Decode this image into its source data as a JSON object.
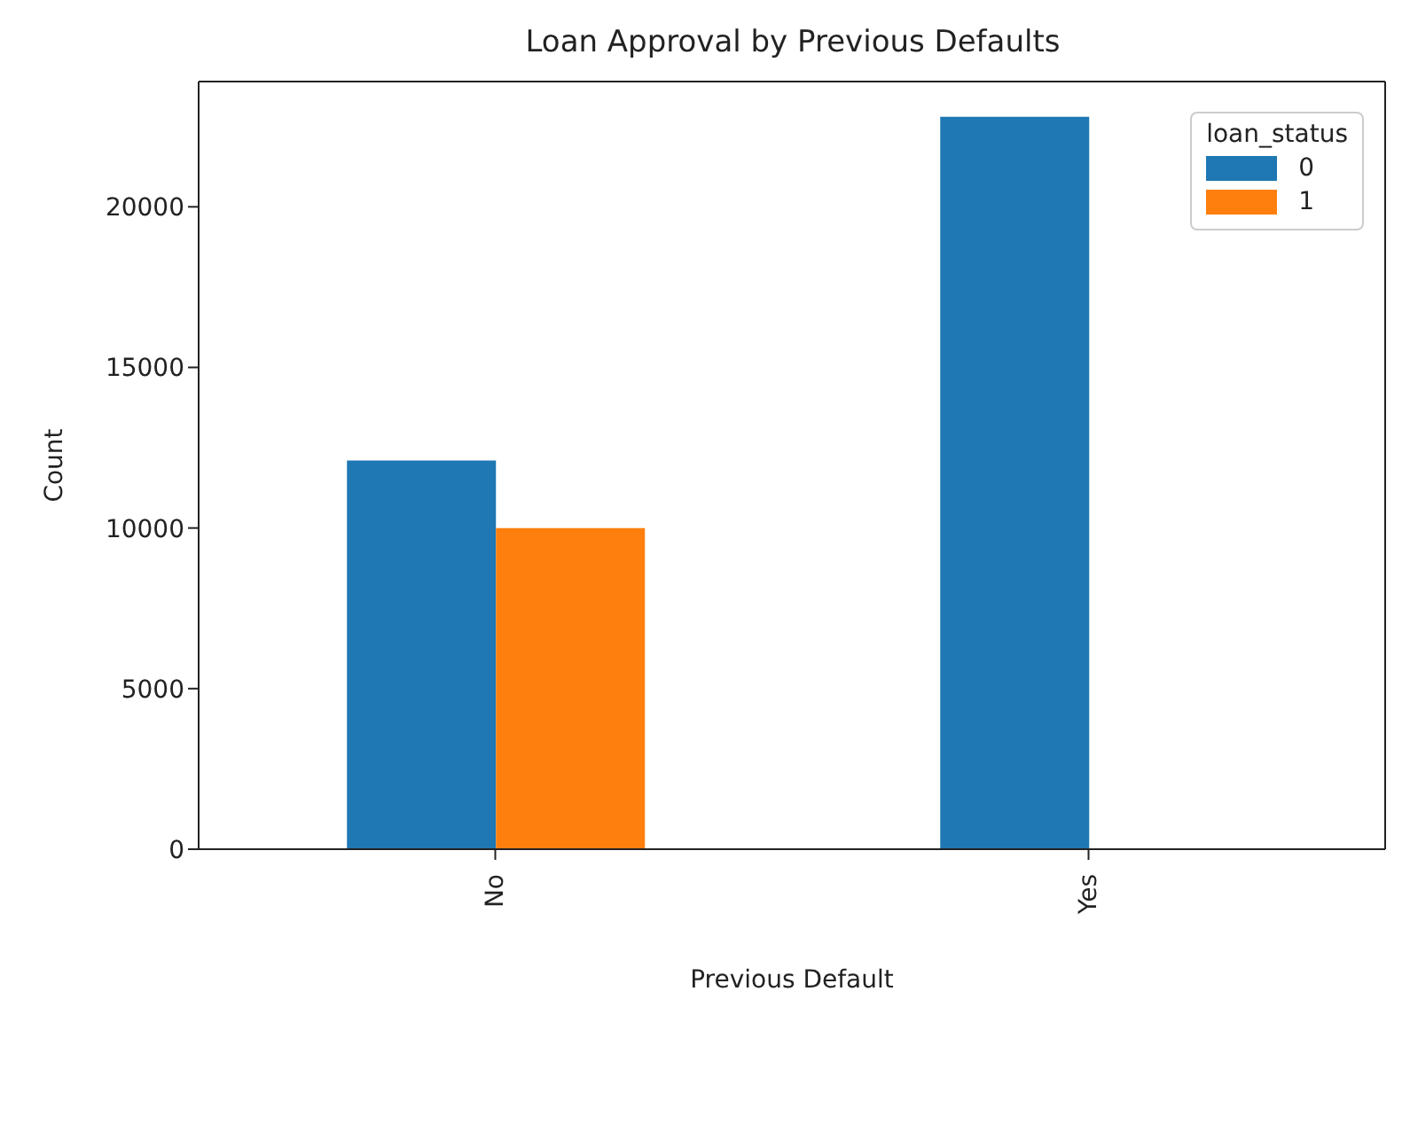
{
  "chart_data": {
    "type": "bar",
    "title": "Loan Approval by Previous Defaults",
    "xlabel": "Previous Default",
    "ylabel": "Count",
    "legend_title": "loan_status",
    "categories": [
      "No",
      "Yes"
    ],
    "series": [
      {
        "name": "0",
        "color": "#1f77b4",
        "values": [
          12100,
          22800
        ]
      },
      {
        "name": "1",
        "color": "#ff7f0e",
        "values": [
          10000,
          0
        ]
      }
    ],
    "ylim": [
      0,
      23900
    ],
    "yticks": [
      0,
      5000,
      10000,
      15000,
      20000
    ],
    "grid": false,
    "legend": "top right"
  }
}
